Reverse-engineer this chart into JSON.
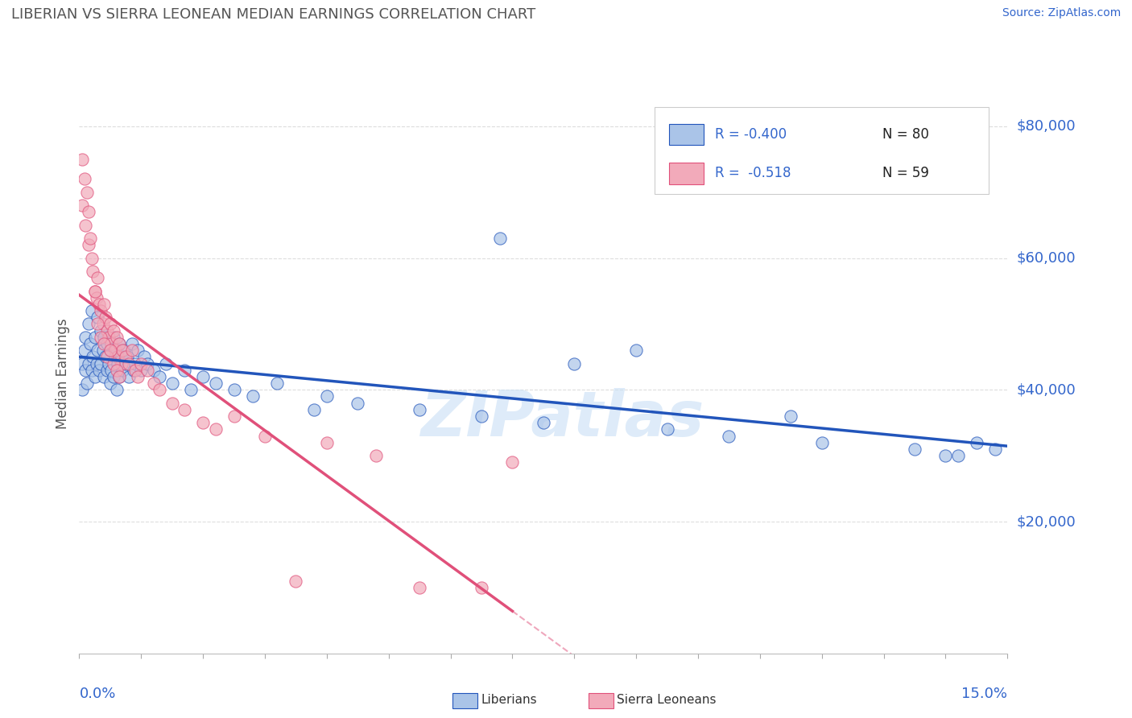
{
  "title": "LIBERIAN VS SIERRA LEONEAN MEDIAN EARNINGS CORRELATION CHART",
  "source": "Source: ZipAtlas.com",
  "ylabel": "Median Earnings",
  "xlim": [
    0.0,
    15.0
  ],
  "ylim": [
    0,
    85000
  ],
  "yticks": [
    20000,
    40000,
    60000,
    80000
  ],
  "ytick_labels": [
    "$20,000",
    "$40,000",
    "$60,000",
    "$80,000"
  ],
  "legend_r1": "R = -0.400",
  "legend_n1": "N = 80",
  "legend_r2": "R =  -0.518",
  "legend_n2": "N = 59",
  "liberian_color": "#aac4e8",
  "sierra_leonean_color": "#f2aaba",
  "liberian_line_color": "#2255bb",
  "sierra_leonean_line_color": "#e0507a",
  "watermark": "ZIPatlas",
  "background_color": "#ffffff",
  "grid_color": "#dddddd",
  "liberian_scatter_x": [
    0.05,
    0.05,
    0.08,
    0.1,
    0.1,
    0.12,
    0.15,
    0.15,
    0.18,
    0.2,
    0.2,
    0.22,
    0.25,
    0.25,
    0.28,
    0.3,
    0.3,
    0.32,
    0.35,
    0.35,
    0.38,
    0.4,
    0.4,
    0.42,
    0.45,
    0.45,
    0.48,
    0.5,
    0.5,
    0.52,
    0.55,
    0.55,
    0.58,
    0.6,
    0.6,
    0.62,
    0.65,
    0.65,
    0.68,
    0.7,
    0.72,
    0.75,
    0.78,
    0.8,
    0.85,
    0.88,
    0.9,
    0.95,
    1.0,
    1.05,
    1.1,
    1.2,
    1.3,
    1.4,
    1.5,
    1.7,
    1.8,
    2.0,
    2.2,
    2.5,
    2.8,
    3.2,
    4.0,
    4.5,
    5.5,
    6.5,
    7.5,
    8.0,
    9.5,
    10.5,
    11.5,
    12.0,
    13.5,
    14.0,
    14.5,
    14.8,
    3.8,
    6.8,
    14.2,
    9.0
  ],
  "liberian_scatter_y": [
    44000,
    40000,
    46000,
    43000,
    48000,
    41000,
    50000,
    44000,
    47000,
    52000,
    43000,
    45000,
    48000,
    42000,
    44000,
    51000,
    46000,
    43000,
    49000,
    44000,
    46000,
    48000,
    42000,
    45000,
    47000,
    43000,
    44000,
    46000,
    41000,
    43000,
    48000,
    42000,
    45000,
    46000,
    40000,
    44000,
    47000,
    42000,
    45000,
    43000,
    46000,
    44000,
    45000,
    42000,
    47000,
    43000,
    44000,
    46000,
    43000,
    45000,
    44000,
    43000,
    42000,
    44000,
    41000,
    43000,
    40000,
    42000,
    41000,
    40000,
    39000,
    41000,
    39000,
    38000,
    37000,
    36000,
    35000,
    44000,
    34000,
    33000,
    36000,
    32000,
    31000,
    30000,
    32000,
    31000,
    37000,
    63000,
    30000,
    46000
  ],
  "sierra_leonean_scatter_x": [
    0.05,
    0.05,
    0.08,
    0.1,
    0.12,
    0.15,
    0.15,
    0.18,
    0.2,
    0.22,
    0.25,
    0.28,
    0.3,
    0.32,
    0.35,
    0.38,
    0.4,
    0.42,
    0.45,
    0.48,
    0.5,
    0.52,
    0.55,
    0.58,
    0.6,
    0.62,
    0.65,
    0.68,
    0.7,
    0.75,
    0.8,
    0.85,
    0.9,
    0.95,
    1.0,
    1.1,
    1.2,
    1.3,
    1.5,
    1.7,
    2.0,
    2.2,
    2.5,
    3.0,
    3.5,
    4.0,
    4.8,
    5.5,
    6.5,
    7.0,
    0.25,
    0.3,
    0.35,
    0.4,
    0.45,
    0.5,
    0.55,
    0.6,
    0.65
  ],
  "sierra_leonean_scatter_y": [
    75000,
    68000,
    72000,
    65000,
    70000,
    62000,
    67000,
    63000,
    60000,
    58000,
    55000,
    54000,
    57000,
    53000,
    52000,
    50000,
    53000,
    51000,
    49000,
    48000,
    50000,
    47000,
    49000,
    46000,
    48000,
    45000,
    47000,
    44000,
    46000,
    45000,
    44000,
    46000,
    43000,
    42000,
    44000,
    43000,
    41000,
    40000,
    38000,
    37000,
    35000,
    34000,
    36000,
    33000,
    11000,
    32000,
    30000,
    10000,
    10000,
    29000,
    55000,
    50000,
    48000,
    47000,
    45000,
    46000,
    44000,
    43000,
    42000
  ]
}
